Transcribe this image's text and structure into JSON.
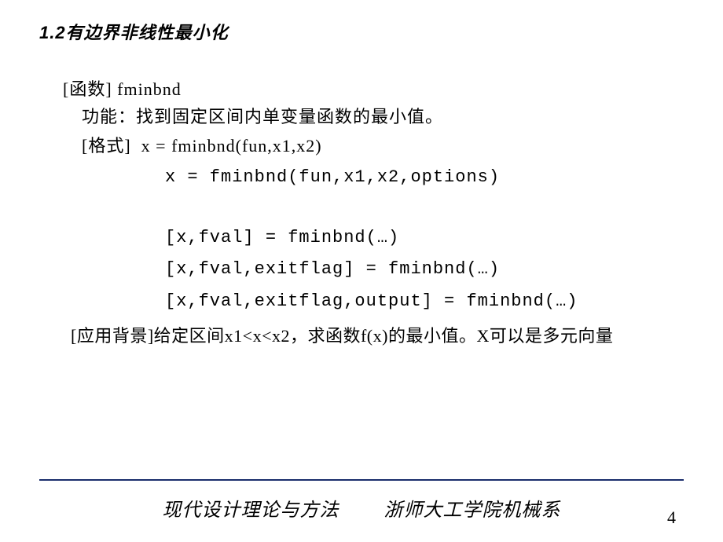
{
  "section": {
    "number": "1.2",
    "title": "有边界非线性最小化"
  },
  "function": {
    "label": "[函数]",
    "name": "fminbnd",
    "desc_label": "功能：",
    "desc": "找到固定区间内单变量函数的最小值。",
    "format_label": "[格式]",
    "signatures": [
      "x = fminbnd(fun,x1,x2)",
      "x = fminbnd(fun,x1,x2,options)",
      "[x,fval] = fminbnd(…)",
      "[x,fval,exitflag] = fminbnd(…)",
      "[x,fval,exitflag,output] = fminbnd(…)"
    ],
    "app_bg_label": "[应用背景]",
    "app_bg": "给定区间x1<x<x2，求函数f(x)的最小值。X可以是多元向量"
  },
  "footer": {
    "left": "现代设计理论与方法",
    "right": "浙师大工学院机械系"
  },
  "page": "4",
  "style": {
    "bg": "#ffffff",
    "text_color": "#000000",
    "divider_color": "#1a2d6b",
    "title_fontsize": 22,
    "body_fontsize": 22,
    "footer_fontsize": 24,
    "pagenum_fontsize": 22
  }
}
